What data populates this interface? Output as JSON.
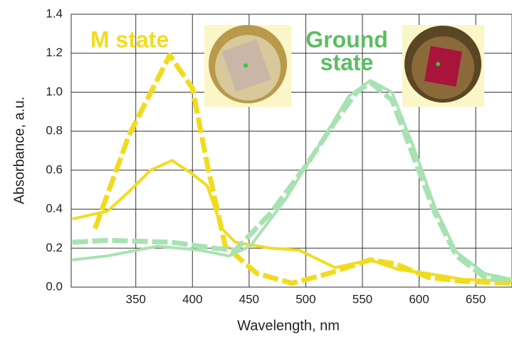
{
  "chart_data": {
    "type": "line",
    "y_label": "Absorbance, a.u.",
    "x_label": "Wavelength, nm",
    "annotations": [
      {
        "text": "M state",
        "color": "#f2dc1f"
      },
      {
        "text": "Ground",
        "color": "#5cbd63"
      },
      {
        "text": "state",
        "color": "#5cbd63"
      }
    ],
    "xlim": [
      293,
      682
    ],
    "ylim": [
      0,
      1.4
    ],
    "xticks": [
      350,
      400,
      450,
      500,
      550,
      600,
      650
    ],
    "yticks": [
      {
        "value": 0,
        "label": "0.0"
      },
      0.2,
      0.4,
      0.6,
      0.8,
      {
        "value": 1,
        "label": "1.0"
      },
      1.2,
      1.4
    ],
    "grid": true,
    "series": [
      {
        "color": "#f0dc1e",
        "dashed": true,
        "x": [
          314,
          344,
          380,
          400,
          413,
          429,
          457,
          488,
          520,
          557,
          579,
          608,
          639,
          682
        ],
        "values": [
          0.3,
          0.78,
          1.19,
          1.02,
          0.63,
          0.21,
          0.07,
          0.02,
          0.07,
          0.14,
          0.12,
          0.05,
          0.03,
          0.02
        ]
      },
      {
        "color": "#f0dc1e",
        "dashed": false,
        "x": [
          294,
          325,
          344,
          363,
          382,
          400,
          413,
          426,
          438,
          469,
          494,
          526,
          557,
          582,
          608,
          639,
          682
        ],
        "values": [
          0.35,
          0.39,
          0.49,
          0.6,
          0.65,
          0.58,
          0.52,
          0.3,
          0.23,
          0.2,
          0.19,
          0.1,
          0.14,
          0.09,
          0.07,
          0.04,
          0.03
        ]
      },
      {
        "color": "#a8e2b2",
        "dashed": true,
        "x": [
          294,
          325,
          382,
          419,
          438,
          469,
          501,
          526,
          545,
          557,
          576,
          595,
          614,
          633,
          658,
          682
        ],
        "values": [
          0.23,
          0.24,
          0.23,
          0.2,
          0.19,
          0.38,
          0.63,
          0.85,
          1.0,
          1.05,
          0.96,
          0.67,
          0.38,
          0.16,
          0.05,
          0.03
        ]
      },
      {
        "color": "#a8e2b2",
        "dashed": false,
        "x": [
          294,
          325,
          369,
          406,
          432,
          451,
          482,
          513,
          538,
          557,
          576,
          595,
          614,
          633,
          658,
          682
        ],
        "values": [
          0.14,
          0.16,
          0.21,
          0.19,
          0.16,
          0.21,
          0.45,
          0.74,
          0.98,
          1.06,
          1.0,
          0.72,
          0.41,
          0.18,
          0.07,
          0.04
        ]
      }
    ]
  }
}
